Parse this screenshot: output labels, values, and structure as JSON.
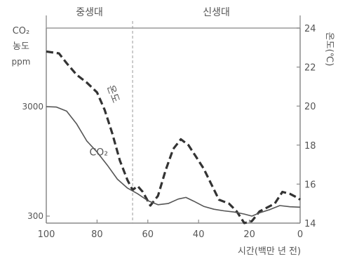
{
  "chart_data": {
    "type": "line",
    "eras": [
      {
        "name": "중생대",
        "from": 100,
        "to": 66
      },
      {
        "name": "신생대",
        "from": 66,
        "to": 0
      }
    ],
    "boundary_x": 66,
    "xlabel": "시간(백만 년 전)",
    "x_reversed": true,
    "xlim": [
      100,
      0
    ],
    "x_ticks": [
      "100",
      "80",
      "60",
      "40",
      "20",
      "0"
    ],
    "y_left": {
      "label_lines": [
        "CO₂",
        "농도",
        "ppm"
      ],
      "ticks": [
        "3000",
        "300"
      ],
      "range": [
        300,
        3000
      ]
    },
    "y_right": {
      "label": "온도(℃)",
      "ticks": [
        "24",
        "22",
        "20",
        "18",
        "16",
        "14"
      ],
      "range": [
        14,
        24
      ]
    },
    "series": [
      {
        "name": "온도",
        "axis": "right",
        "style": "dashed",
        "points": [
          [
            100,
            22.8
          ],
          [
            95,
            22.7
          ],
          [
            92,
            22.2
          ],
          [
            88,
            21.6
          ],
          [
            84,
            21.2
          ],
          [
            80,
            20.7
          ],
          [
            77,
            19.8
          ],
          [
            74,
            18.6
          ],
          [
            71,
            17.2
          ],
          [
            68,
            16.2
          ],
          [
            66,
            15.7
          ],
          [
            64,
            15.9
          ],
          [
            62,
            15.6
          ],
          [
            59,
            14.9
          ],
          [
            56,
            15.4
          ],
          [
            53,
            16.7
          ],
          [
            50,
            17.8
          ],
          [
            47,
            18.3
          ],
          [
            44,
            18.0
          ],
          [
            41,
            17.4
          ],
          [
            38,
            16.8
          ],
          [
            35,
            16.0
          ],
          [
            32,
            15.2
          ],
          [
            28,
            15.0
          ],
          [
            25,
            14.6
          ],
          [
            22,
            14.0
          ],
          [
            19,
            14.1
          ],
          [
            16,
            14.6
          ],
          [
            13,
            14.8
          ],
          [
            10,
            15.0
          ],
          [
            7,
            15.6
          ],
          [
            4,
            15.5
          ],
          [
            1,
            15.3
          ],
          [
            0,
            15.2
          ]
        ]
      },
      {
        "name": "CO₂",
        "axis": "left",
        "style": "solid",
        "points": [
          [
            100,
            3000
          ],
          [
            96,
            2990
          ],
          [
            92,
            2890
          ],
          [
            88,
            2570
          ],
          [
            84,
            2150
          ],
          [
            80,
            1880
          ],
          [
            76,
            1560
          ],
          [
            72,
            1210
          ],
          [
            68,
            990
          ],
          [
            64,
            850
          ],
          [
            60,
            680
          ],
          [
            56,
            580
          ],
          [
            52,
            610
          ],
          [
            48,
            720
          ],
          [
            45,
            760
          ],
          [
            42,
            670
          ],
          [
            38,
            540
          ],
          [
            34,
            470
          ],
          [
            30,
            430
          ],
          [
            26,
            400
          ],
          [
            22,
            350
          ],
          [
            19,
            300
          ],
          [
            16,
            380
          ],
          [
            12,
            460
          ],
          [
            8,
            560
          ],
          [
            4,
            530
          ],
          [
            0,
            520
          ]
        ]
      }
    ],
    "annotations": [
      {
        "text": "온도",
        "series": "온도"
      },
      {
        "text": "CO₂",
        "series": "CO₂"
      }
    ],
    "grid": false
  }
}
